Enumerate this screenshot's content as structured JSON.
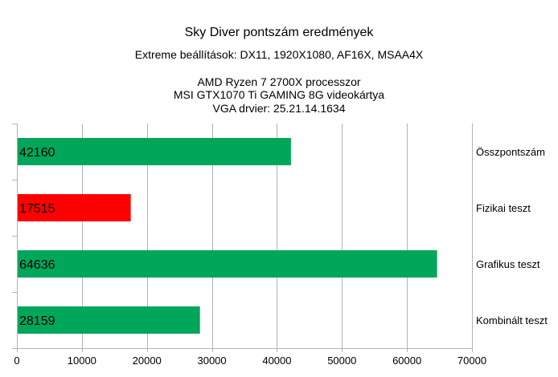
{
  "chart_data": {
    "type": "bar",
    "orientation": "horizontal",
    "title": "Sky Diver pontszám eredmények",
    "subtitle": "Extreme beállítások: DX11, 1920X1080, AF16X, MSAA4X",
    "notes": [
      "AMD Ryzen 7 2700X  processzor",
      "MSI GTX1070 Ti GAMING 8G videokártya",
      "VGA drvier: 25.21.14.1634"
    ],
    "categories": [
      "Összpontszám",
      "Fizikai teszt",
      "Grafikus teszt",
      "Kombinált teszt"
    ],
    "values": [
      42160,
      17515,
      64636,
      28159
    ],
    "data_labels": [
      "42160",
      "17515",
      "64636",
      "28159"
    ],
    "bar_colors": [
      "#00a65a",
      "#ff0000",
      "#00a65a",
      "#00a65a"
    ],
    "xlim": [
      0,
      70000
    ],
    "xticks": [
      0,
      10000,
      20000,
      30000,
      40000,
      50000,
      60000,
      70000
    ],
    "xtick_labels": [
      "0",
      "10000",
      "20000",
      "30000",
      "40000",
      "50000",
      "60000",
      "70000"
    ],
    "grid": true,
    "category_labels_position": "right",
    "gridline_color": "#b3b3b3"
  }
}
